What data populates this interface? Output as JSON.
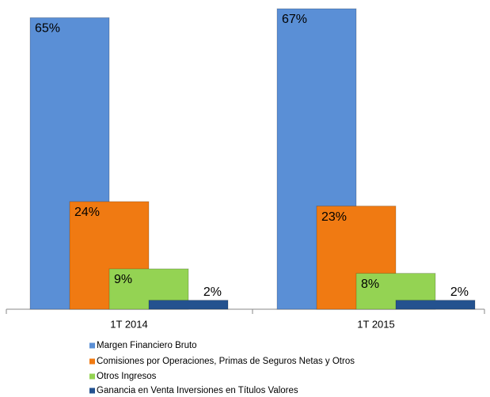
{
  "chart_data": {
    "type": "bar",
    "categories": [
      "1T 2014",
      "1T 2015"
    ],
    "series": [
      {
        "name": "Margen Financiero Bruto",
        "color": "#5a8fd6",
        "values": [
          65,
          67
        ],
        "value_labels": [
          "65%",
          "67%"
        ]
      },
      {
        "name": "Comisiones por Operaciones, Primas de Seguros Netas y Otros",
        "color": "#f07a12",
        "values": [
          24,
          23
        ],
        "value_labels": [
          "24%",
          "23%"
        ]
      },
      {
        "name": "Otros Ingresos",
        "color": "#94d353",
        "values": [
          9,
          8
        ],
        "value_labels": [
          "9%",
          "8%"
        ]
      },
      {
        "name": "Ganancia en Venta Inversiones en Títulos Valores",
        "color": "#24528f",
        "values": [
          2,
          2
        ],
        "value_labels": [
          "2%",
          "2%"
        ]
      }
    ]
  }
}
